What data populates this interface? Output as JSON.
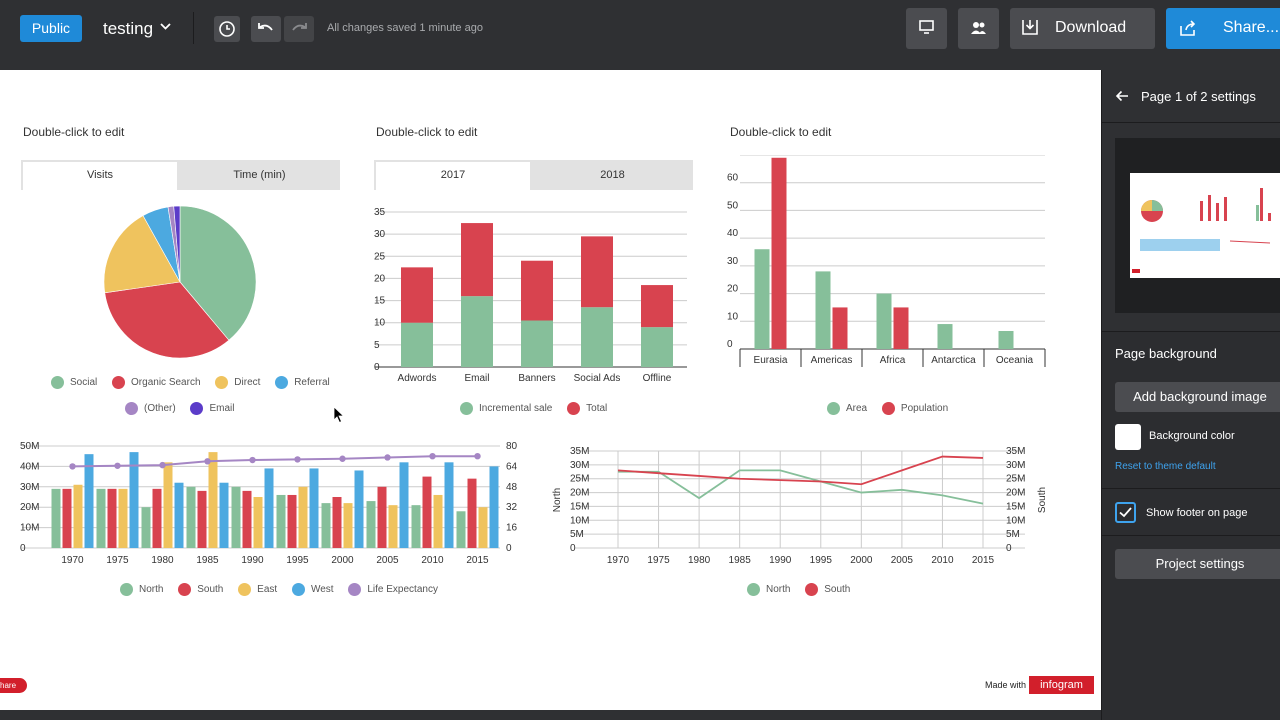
{
  "topbar": {
    "public_label": "Public",
    "project_title": "testing",
    "saved_status": "All changes saved 1 minute ago",
    "download_label": "Download",
    "share_label": "Share..."
  },
  "charts": {
    "pie": {
      "title": "Double-click to edit",
      "tabs": [
        "Visits",
        "Time (min)"
      ]
    },
    "stacked": {
      "title": "Double-click to edit",
      "tabs": [
        "2017",
        "2018"
      ]
    },
    "continents": {
      "title": "Double-click to edit"
    }
  },
  "chart_data": [
    {
      "type": "pie",
      "categories": [
        "Social",
        "Organic Search",
        "Direct",
        "Referral",
        "(Other)",
        "Email"
      ],
      "values": [
        38.5,
        33.5,
        19,
        5.5,
        1.2,
        1.3
      ],
      "colors": [
        "#86bf9a",
        "#d8434f",
        "#efc35e",
        "#4ca9e0",
        "#a586c4",
        "#5b3cc9"
      ],
      "legend": "bottom"
    },
    {
      "type": "bar",
      "stacked": true,
      "categories": [
        "Adwords",
        "Email",
        "Banners",
        "Social Ads",
        "Offline"
      ],
      "series": [
        {
          "name": "Incremental sale",
          "values": [
            10,
            16,
            10.5,
            13.5,
            9
          ],
          "color": "#86bf9a"
        },
        {
          "name": "Total",
          "values": [
            12.5,
            16.5,
            13.5,
            16,
            9.5
          ],
          "color": "#d8434f"
        }
      ],
      "ylim": [
        0,
        35
      ],
      "yticks": [
        0,
        5,
        10,
        15,
        20,
        25,
        30,
        35
      ],
      "grid": true,
      "legend": "bottom"
    },
    {
      "type": "bar",
      "categories": [
        "Eurasia",
        "Americas",
        "Africa",
        "Antarctica",
        "Oceania"
      ],
      "series": [
        {
          "name": "Area",
          "values": [
            36,
            28,
            20,
            9,
            6.5
          ],
          "color": "#86bf9a"
        },
        {
          "name": "Population",
          "values": [
            69,
            15,
            15,
            0,
            0
          ],
          "color": "#d8434f"
        }
      ],
      "ylim": [
        0,
        70
      ],
      "yticks": [
        0,
        10,
        20,
        30,
        40,
        50,
        60,
        70
      ],
      "grid": true,
      "legend": "bottom"
    },
    {
      "type": "bar",
      "categories": [
        "1970",
        "1975",
        "1980",
        "1985",
        "1990",
        "1995",
        "2000",
        "2005",
        "2010",
        "2015"
      ],
      "series": [
        {
          "name": "North",
          "values": [
            29,
            29,
            20,
            30,
            30,
            26,
            22,
            23,
            21,
            18
          ],
          "color": "#86bf9a"
        },
        {
          "name": "South",
          "values": [
            29,
            29,
            29,
            28,
            28,
            26,
            25,
            30,
            35,
            34
          ],
          "color": "#d8434f"
        },
        {
          "name": "East",
          "values": [
            31,
            29,
            42,
            47,
            25,
            30,
            22,
            21,
            26,
            20
          ],
          "color": "#efc35e"
        },
        {
          "name": "West",
          "values": [
            46,
            47,
            32,
            32,
            39,
            39,
            38,
            42,
            42,
            40
          ],
          "color": "#4ca9e0"
        },
        {
          "name": "Life Expectancy",
          "values": [
            64,
            64.5,
            65,
            68,
            69,
            69.5,
            70,
            71,
            72,
            72
          ],
          "color": "#a586c4",
          "axis": "right",
          "render": "line"
        }
      ],
      "ylim": [
        0,
        50
      ],
      "yticks": [
        "0",
        "10M",
        "20M",
        "30M",
        "40M",
        "50M"
      ],
      "y2lim": [
        0,
        80
      ],
      "y2ticks": [
        0,
        16,
        32,
        48,
        64,
        80
      ],
      "grid": true,
      "legend": "bottom"
    },
    {
      "type": "line",
      "x": [
        "1970",
        "1975",
        "1980",
        "1985",
        "1990",
        "1995",
        "2000",
        "2005",
        "2010",
        "2015"
      ],
      "series": [
        {
          "name": "North",
          "values": [
            27.5,
            27.5,
            18,
            28,
            28,
            24,
            20,
            21,
            19,
            16
          ],
          "color": "#86bf9a"
        },
        {
          "name": "South",
          "values": [
            28,
            27,
            26,
            25,
            24.5,
            24,
            23,
            28,
            33,
            32.5
          ],
          "color": "#d8434f"
        }
      ],
      "ylim": [
        0,
        35
      ],
      "yticks": [
        "0",
        "5M",
        "10M",
        "15M",
        "20M",
        "25M",
        "30M",
        "35M"
      ],
      "ylabel": "North",
      "y2label": "South",
      "grid": true,
      "legend": "bottom"
    }
  ],
  "footer": {
    "made_with": "Made with",
    "brand": "infogram",
    "share_fragment": "hare"
  },
  "sidebar": {
    "header": "Page 1 of 2 settings",
    "page_background": "Page background",
    "add_background": "Add background image",
    "background_color": "Background color",
    "reset_theme": "Reset to theme default",
    "show_footer": "Show footer on page",
    "project_settings": "Project settings"
  }
}
